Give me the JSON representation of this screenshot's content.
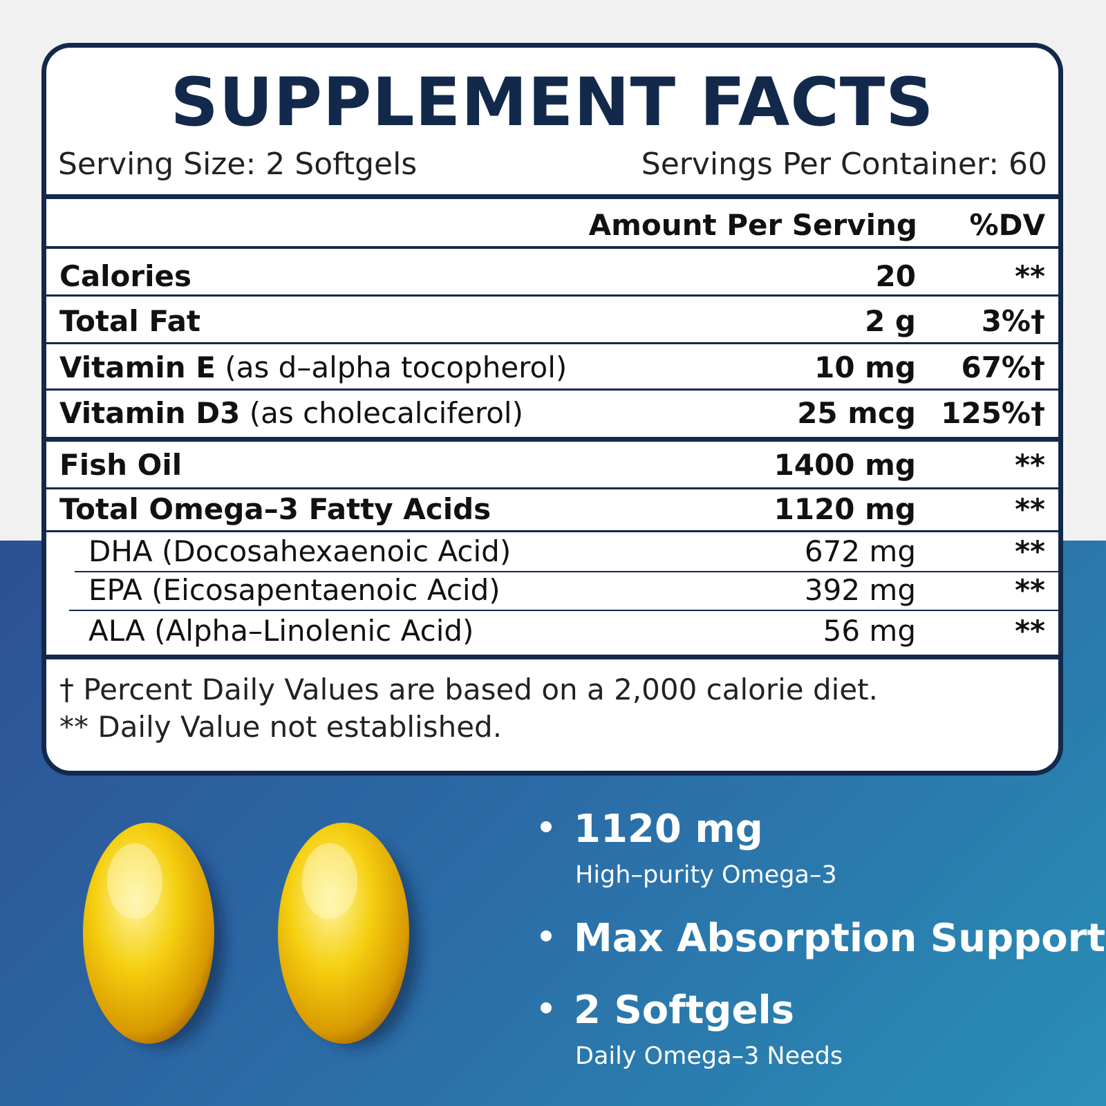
{
  "title": "SUPPLEMENT  FACTS",
  "serving_size": "Serving Size: 2 Softgels",
  "servings_per_container": "Servings Per Container: 60",
  "header": {
    "amount": "Amount Per Serving",
    "dv": "%DV"
  },
  "rows": [
    {
      "name": "Calories",
      "amount": "20",
      "dv": "**"
    },
    {
      "name": "Total Fat",
      "amount": "2 g",
      "dv": "3%†"
    },
    {
      "name": "Vitamin E",
      "note": "(as d–alpha tocopherol)",
      "amount": "10 mg",
      "dv": "67%†"
    },
    {
      "name": "Vitamin D3",
      "note": "(as cholecalciferol)",
      "amount": "25 mcg",
      "dv": "125%†"
    },
    {
      "name": "Fish Oil",
      "amount": "1400 mg",
      "dv": "**"
    },
    {
      "name": "Total Omega–3 Fatty Acids",
      "amount": "1120 mg",
      "dv": "**"
    },
    {
      "name": "DHA  (Docosahexaenoic Acid)",
      "amount": "672 mg",
      "dv": "**"
    },
    {
      "name": "EPA  (Eicosapentaenoic Acid)",
      "amount": "392 mg",
      "dv": "**"
    },
    {
      "name": "ALA  (Alpha–Linolenic Acid)",
      "amount": "56 mg",
      "dv": "**"
    }
  ],
  "footnotes": [
    "† Percent Daily Values are based on a 2,000 calorie diet.",
    "** Daily Value not established."
  ],
  "features": [
    {
      "title": "1120 mg",
      "subtitle": "High–purity Omega–3"
    },
    {
      "title": "Max Absorption Support"
    },
    {
      "title": "2 Softgels",
      "subtitle": "Daily Omega–3 Needs"
    }
  ]
}
